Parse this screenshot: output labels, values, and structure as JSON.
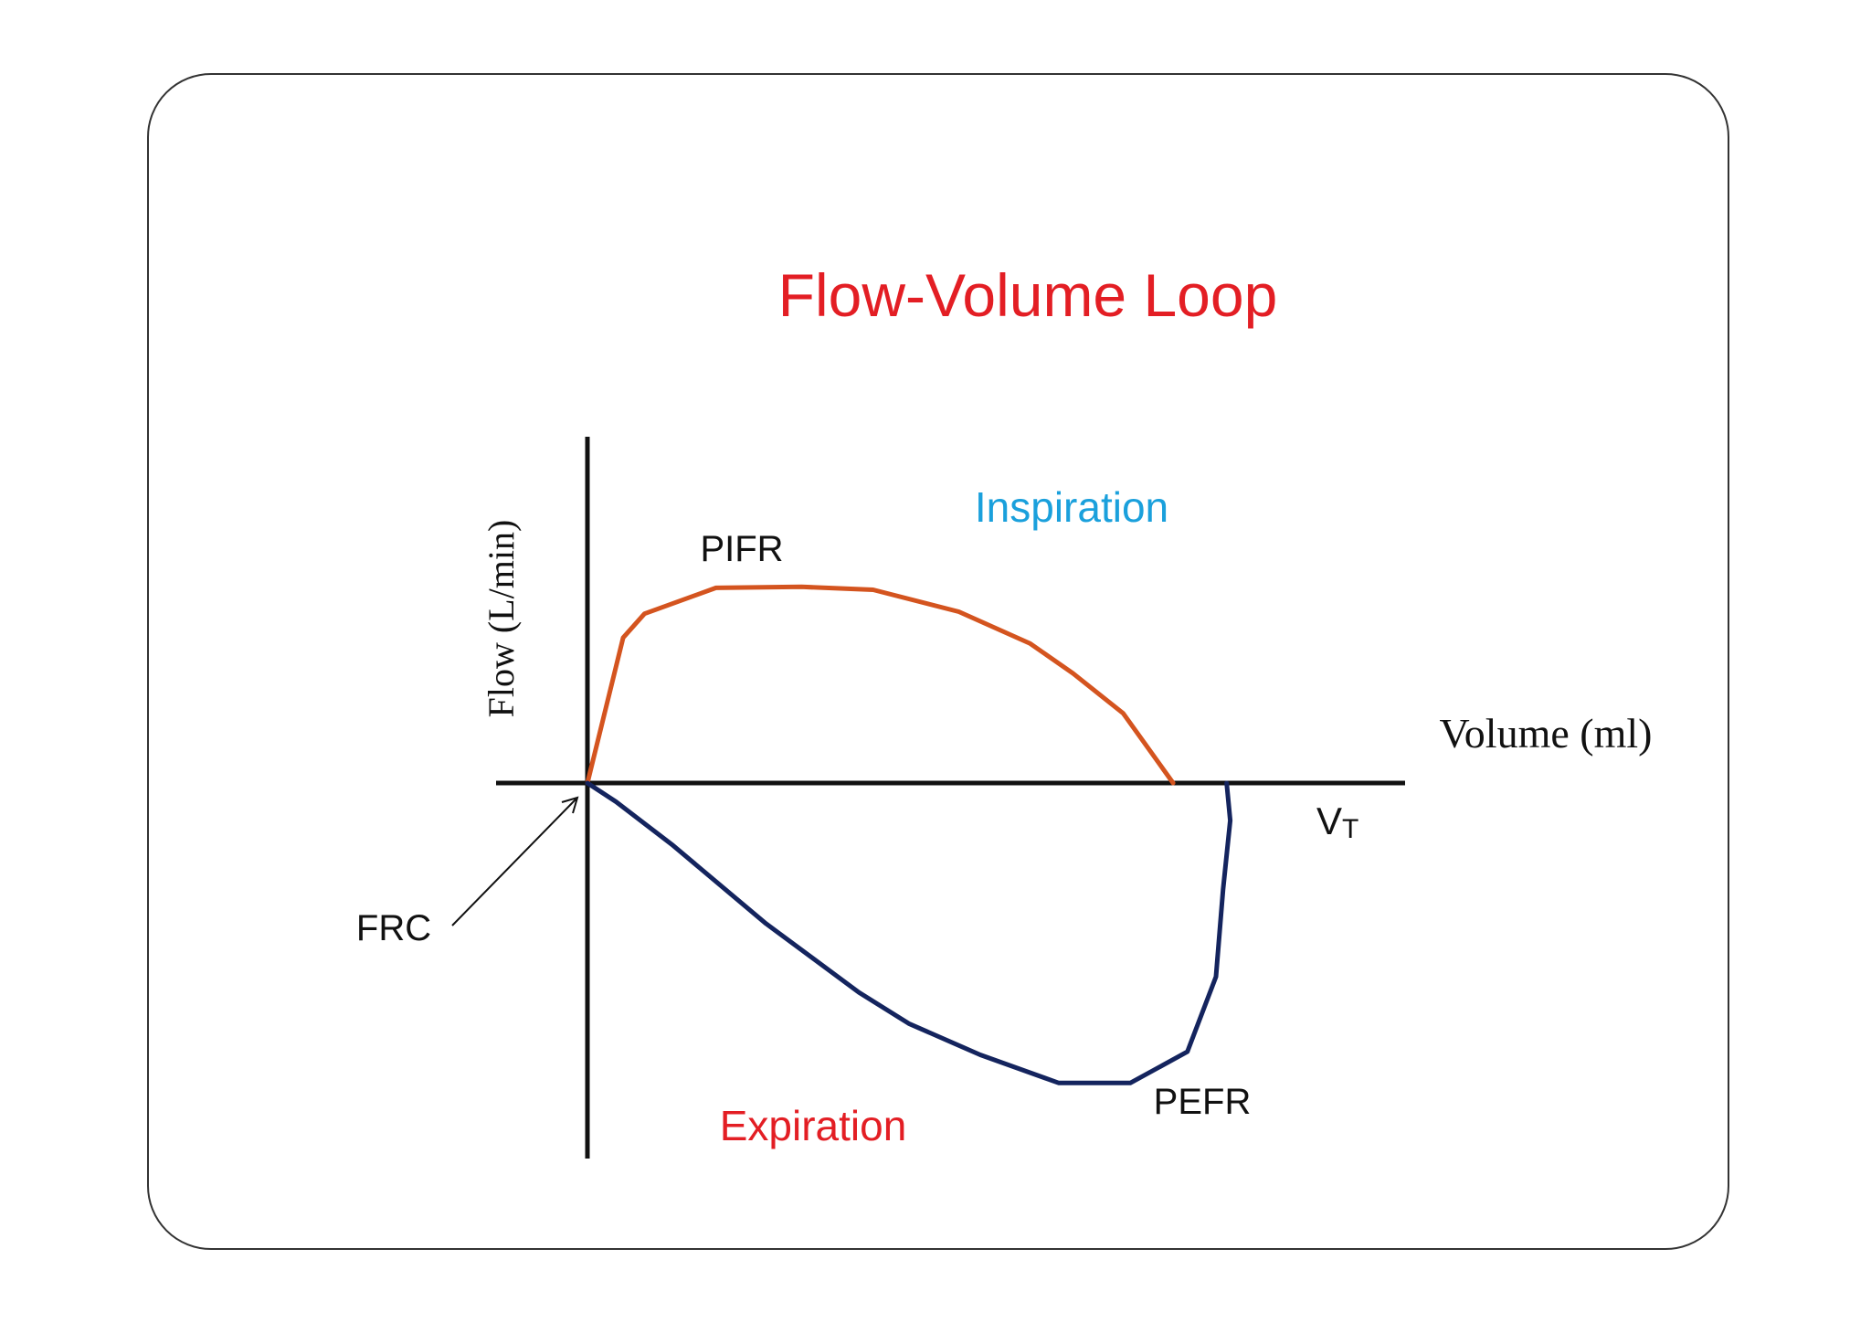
{
  "title": "Flow-Volume Loop",
  "axes": {
    "y_label": "Flow (L/min)",
    "x_label": "Volume (ml)"
  },
  "regions": {
    "inspiration": "Inspiration",
    "expiration": "Expiration"
  },
  "annotations": {
    "pifr": "PIFR",
    "pefr": "PEFR",
    "frc": "FRC",
    "vt_main": "V",
    "vt_sub": "T"
  },
  "colors": {
    "title": "#e31e24",
    "inspiration_label": "#1aa0dc",
    "expiration_label": "#e31e24",
    "inspiration_curve": "#d4541f",
    "expiration_curve": "#14245e",
    "axes": "#111111",
    "text": "#111111"
  },
  "chart_data": {
    "type": "line",
    "series": [
      {
        "name": "Inspiration",
        "points": [
          [
            0,
            0
          ],
          [
            0.05,
            0.73
          ],
          [
            0.08,
            0.85
          ],
          [
            0.18,
            0.98
          ],
          [
            0.3,
            0.985
          ],
          [
            0.4,
            0.97
          ],
          [
            0.52,
            0.86
          ],
          [
            0.62,
            0.7
          ],
          [
            0.68,
            0.55
          ],
          [
            0.75,
            0.35
          ],
          [
            0.8,
            0.1
          ],
          [
            0.82,
            0.0
          ]
        ]
      },
      {
        "name": "Expiration",
        "points": [
          [
            0,
            0
          ],
          [
            0.04,
            -0.06
          ],
          [
            0.12,
            -0.2
          ],
          [
            0.25,
            -0.45
          ],
          [
            0.38,
            -0.67
          ],
          [
            0.45,
            -0.77
          ],
          [
            0.55,
            -0.87
          ],
          [
            0.66,
            -0.96
          ],
          [
            0.76,
            -0.96
          ],
          [
            0.84,
            -0.86
          ],
          [
            0.88,
            -0.62
          ],
          [
            0.89,
            -0.34
          ],
          [
            0.9,
            -0.12
          ],
          [
            0.895,
            0.0
          ]
        ]
      }
    ]
  }
}
